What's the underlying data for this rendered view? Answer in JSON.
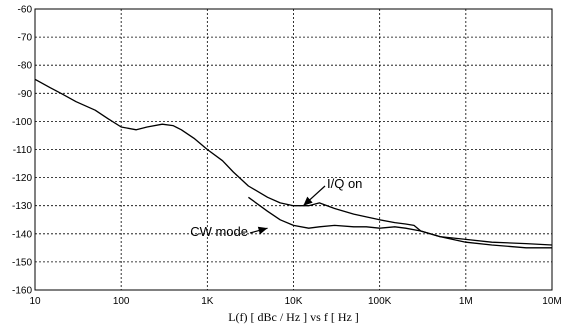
{
  "chart_data": {
    "type": "line",
    "title": "",
    "xlabel": "L(f)  [ dBc / Hz ]  vs  f  [ Hz ]",
    "ylabel": "",
    "x_scale": "log",
    "xlim": [
      10,
      10000000
    ],
    "ylim": [
      -160,
      -60
    ],
    "x_ticks": [
      10,
      100,
      1000,
      10000,
      100000,
      1000000,
      10000000
    ],
    "x_tick_labels": [
      "10",
      "100",
      "1K",
      "10K",
      "100K",
      "1M",
      "10M"
    ],
    "y_ticks": [
      -60,
      -70,
      -80,
      -90,
      -100,
      -110,
      -120,
      -130,
      -140,
      -150,
      -160
    ],
    "y_tick_labels": [
      "-60",
      "-70",
      "-80",
      "-90",
      "-100",
      "-110",
      "-120",
      "-130",
      "-140",
      "-150",
      "-160"
    ],
    "grid": true,
    "series": [
      {
        "color": "#000000",
        "x": [
          10,
          15,
          20,
          30,
          50,
          70,
          100,
          150,
          200,
          300,
          400,
          500,
          700,
          1000,
          1500,
          2000,
          3000,
          5000,
          7000,
          10000,
          15000,
          20000,
          30000,
          50000,
          70000,
          100000,
          150000,
          200000,
          250000,
          300000,
          500000,
          1000000,
          2000000,
          5000000,
          10000000
        ],
        "y": [
          -85,
          -88,
          -90,
          -93,
          -96,
          -99,
          -102,
          -103,
          -102,
          -101,
          -101.5,
          -103,
          -106,
          -110,
          -114,
          -118,
          -123,
          -127,
          -129,
          -130,
          -130,
          -129,
          -131,
          -133,
          -134,
          -135,
          -136,
          -136.5,
          -137,
          -139,
          -141,
          -142,
          -143,
          -143.5,
          -144
        ]
      },
      {
        "color": "#000000",
        "x": [
          3000,
          5000,
          7000,
          10000,
          15000,
          20000,
          30000,
          50000,
          70000,
          100000,
          150000,
          200000,
          300000,
          500000,
          1000000,
          2000000,
          5000000,
          10000000
        ],
        "y": [
          -127,
          -132,
          -135,
          -137,
          -138,
          -137.5,
          -137,
          -137.5,
          -137.5,
          -138,
          -137.5,
          -138,
          -139,
          -141,
          -143,
          -144,
          -145,
          -145
        ]
      }
    ],
    "annotations": [
      {
        "text": "I/Q on",
        "x": 13000,
        "y": -130
      },
      {
        "text": "CW mode",
        "x": 5000,
        "y": -138
      }
    ]
  }
}
